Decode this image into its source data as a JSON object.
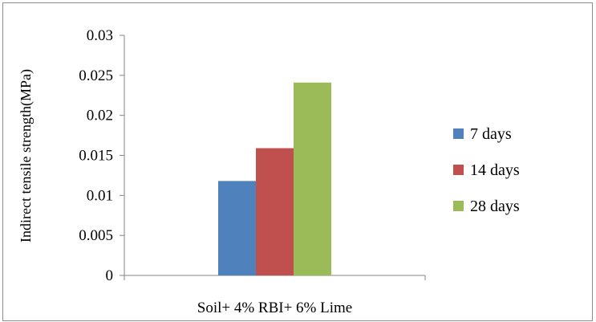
{
  "chart_data": {
    "type": "bar",
    "title": "",
    "xlabel": "",
    "ylabel": "Indirect tensile strength(MPa)",
    "categories": [
      "Soil+ 4% RBI+  6% Lime"
    ],
    "series": [
      {
        "name": "7 days",
        "color": "#4f81bd",
        "values": [
          0.0118
        ]
      },
      {
        "name": "14 days",
        "color": "#c0504d",
        "values": [
          0.0159
        ]
      },
      {
        "name": "28 days",
        "color": "#9bbb59",
        "values": [
          0.0241
        ]
      }
    ],
    "ylim": [
      0,
      0.03
    ],
    "yticks": [
      "0",
      "0.005",
      "0.01",
      "0.015",
      "0.02",
      "0.025",
      "0.03"
    ],
    "grid": false,
    "legend_position": "right"
  }
}
